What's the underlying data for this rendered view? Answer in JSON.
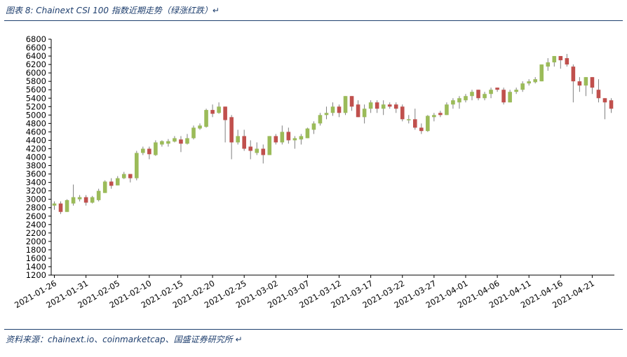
{
  "figure": {
    "title": "图表 8:  Chainext CSI 100 指数近期走势（绿涨红跌）↵",
    "source": "资料来源：chainext.io、coinmarketcap、国盛证券研究所 ↵"
  },
  "colors": {
    "up": "#9bbb59",
    "down": "#c0504d",
    "wick": "#7f7f7f",
    "rule": "#1f3f6e",
    "axis": "#000000"
  },
  "chart_data": {
    "type": "candlestick",
    "title": "",
    "xlabel": "",
    "ylabel": "",
    "ylim": [
      1200,
      6800
    ],
    "ytick_step": 200,
    "grid": false,
    "legend": "none",
    "xtick_labels": [
      "2021-01-26",
      "2021-01-31",
      "2021-02-05",
      "2021-02-10",
      "2021-02-15",
      "2021-02-20",
      "2021-02-25",
      "2021-03-02",
      "2021-03-07",
      "2021-03-12",
      "2021-03-17",
      "2021-03-22",
      "2021-03-27",
      "2021-04-01",
      "2021-04-06",
      "2021-04-11",
      "2021-04-16",
      "2021-04-21"
    ],
    "ohlc": [
      {
        "date": "2021-01-26",
        "o": 2850,
        "h": 2950,
        "l": 2750,
        "c": 2900
      },
      {
        "date": "2021-01-27",
        "o": 2900,
        "h": 2950,
        "l": 2650,
        "c": 2700
      },
      {
        "date": "2021-01-28",
        "o": 2700,
        "h": 3000,
        "l": 2700,
        "c": 2980
      },
      {
        "date": "2021-01-29",
        "o": 2900,
        "h": 3350,
        "l": 2850,
        "c": 3050
      },
      {
        "date": "2021-01-30",
        "o": 3000,
        "h": 3100,
        "l": 2950,
        "c": 3050
      },
      {
        "date": "2021-01-31",
        "o": 3050,
        "h": 3100,
        "l": 2850,
        "c": 2920
      },
      {
        "date": "2021-02-01",
        "o": 2920,
        "h": 3080,
        "l": 2900,
        "c": 3050
      },
      {
        "date": "2021-02-02",
        "o": 2980,
        "h": 3250,
        "l": 2950,
        "c": 3200
      },
      {
        "date": "2021-02-03",
        "o": 3150,
        "h": 3450,
        "l": 3150,
        "c": 3420
      },
      {
        "date": "2021-02-04",
        "o": 3420,
        "h": 3500,
        "l": 3250,
        "c": 3320
      },
      {
        "date": "2021-02-05",
        "o": 3330,
        "h": 3550,
        "l": 3330,
        "c": 3500
      },
      {
        "date": "2021-02-06",
        "o": 3500,
        "h": 3650,
        "l": 3480,
        "c": 3600
      },
      {
        "date": "2021-02-07",
        "o": 3600,
        "h": 3600,
        "l": 3400,
        "c": 3500
      },
      {
        "date": "2021-02-08",
        "o": 3500,
        "h": 4150,
        "l": 3450,
        "c": 4100
      },
      {
        "date": "2021-02-09",
        "o": 4100,
        "h": 4250,
        "l": 4050,
        "c": 4200
      },
      {
        "date": "2021-02-10",
        "o": 4200,
        "h": 4250,
        "l": 3950,
        "c": 4070
      },
      {
        "date": "2021-02-11",
        "o": 4050,
        "h": 4400,
        "l": 4030,
        "c": 4350
      },
      {
        "date": "2021-02-12",
        "o": 4300,
        "h": 4400,
        "l": 4250,
        "c": 4380
      },
      {
        "date": "2021-02-13",
        "o": 4320,
        "h": 4430,
        "l": 4250,
        "c": 4380
      },
      {
        "date": "2021-02-14",
        "o": 4370,
        "h": 4500,
        "l": 4350,
        "c": 4450
      },
      {
        "date": "2021-02-15",
        "o": 4420,
        "h": 4500,
        "l": 4120,
        "c": 4320
      },
      {
        "date": "2021-02-16",
        "o": 4320,
        "h": 4550,
        "l": 4300,
        "c": 4450
      },
      {
        "date": "2021-02-17",
        "o": 4450,
        "h": 4750,
        "l": 4420,
        "c": 4700
      },
      {
        "date": "2021-02-18",
        "o": 4680,
        "h": 4800,
        "l": 4650,
        "c": 4750
      },
      {
        "date": "2021-02-19",
        "o": 4720,
        "h": 5150,
        "l": 4700,
        "c": 5120
      },
      {
        "date": "2021-02-20",
        "o": 5120,
        "h": 5250,
        "l": 4950,
        "c": 5030
      },
      {
        "date": "2021-02-21",
        "o": 5050,
        "h": 5300,
        "l": 5030,
        "c": 5200
      },
      {
        "date": "2021-02-22",
        "o": 5200,
        "h": 5200,
        "l": 4350,
        "c": 4880
      },
      {
        "date": "2021-02-23",
        "o": 4950,
        "h": 5000,
        "l": 3950,
        "c": 4350
      },
      {
        "date": "2021-02-24",
        "o": 4350,
        "h": 4650,
        "l": 4300,
        "c": 4500
      },
      {
        "date": "2021-02-25",
        "o": 4500,
        "h": 4650,
        "l": 4150,
        "c": 4200
      },
      {
        "date": "2021-02-26",
        "o": 4250,
        "h": 4400,
        "l": 3950,
        "c": 4150
      },
      {
        "date": "2021-02-27",
        "o": 4100,
        "h": 4350,
        "l": 4050,
        "c": 4200
      },
      {
        "date": "2021-02-28",
        "o": 4200,
        "h": 4300,
        "l": 3850,
        "c": 4050
      },
      {
        "date": "2021-03-01",
        "o": 4050,
        "h": 4500,
        "l": 4050,
        "c": 4500
      },
      {
        "date": "2021-03-02",
        "o": 4500,
        "h": 4550,
        "l": 4300,
        "c": 4350
      },
      {
        "date": "2021-03-03",
        "o": 4350,
        "h": 4750,
        "l": 4300,
        "c": 4600
      },
      {
        "date": "2021-03-04",
        "o": 4600,
        "h": 4700,
        "l": 4320,
        "c": 4400
      },
      {
        "date": "2021-03-05",
        "o": 4400,
        "h": 4500,
        "l": 4200,
        "c": 4450
      },
      {
        "date": "2021-03-06",
        "o": 4420,
        "h": 4550,
        "l": 4300,
        "c": 4500
      },
      {
        "date": "2021-03-07",
        "o": 4450,
        "h": 4700,
        "l": 4450,
        "c": 4680
      },
      {
        "date": "2021-03-08",
        "o": 4650,
        "h": 4850,
        "l": 4550,
        "c": 4800
      },
      {
        "date": "2021-03-09",
        "o": 4800,
        "h": 5050,
        "l": 4750,
        "c": 5000
      },
      {
        "date": "2021-03-10",
        "o": 5000,
        "h": 5200,
        "l": 4900,
        "c": 5050
      },
      {
        "date": "2021-03-11",
        "o": 5050,
        "h": 5300,
        "l": 4980,
        "c": 5200
      },
      {
        "date": "2021-03-12",
        "o": 5200,
        "h": 5250,
        "l": 4950,
        "c": 5050
      },
      {
        "date": "2021-03-13",
        "o": 5050,
        "h": 5450,
        "l": 5000,
        "c": 5450
      },
      {
        "date": "2021-03-14",
        "o": 5450,
        "h": 5450,
        "l": 5100,
        "c": 5200
      },
      {
        "date": "2021-03-15",
        "o": 5250,
        "h": 5350,
        "l": 4950,
        "c": 4950
      },
      {
        "date": "2021-03-16",
        "o": 4950,
        "h": 5250,
        "l": 4800,
        "c": 5150
      },
      {
        "date": "2021-03-17",
        "o": 5150,
        "h": 5350,
        "l": 5050,
        "c": 5300
      },
      {
        "date": "2021-03-18",
        "o": 5300,
        "h": 5350,
        "l": 5050,
        "c": 5150
      },
      {
        "date": "2021-03-19",
        "o": 5150,
        "h": 5350,
        "l": 5000,
        "c": 5250
      },
      {
        "date": "2021-03-20",
        "o": 5250,
        "h": 5300,
        "l": 5150,
        "c": 5200
      },
      {
        "date": "2021-03-21",
        "o": 5250,
        "h": 5300,
        "l": 5050,
        "c": 5150
      },
      {
        "date": "2021-03-22",
        "o": 5200,
        "h": 5250,
        "l": 4850,
        "c": 4900
      },
      {
        "date": "2021-03-23",
        "o": 4900,
        "h": 5000,
        "l": 4800,
        "c": 4900
      },
      {
        "date": "2021-03-24",
        "o": 4900,
        "h": 5150,
        "l": 4650,
        "c": 4700
      },
      {
        "date": "2021-03-25",
        "o": 4700,
        "h": 4800,
        "l": 4550,
        "c": 4620
      },
      {
        "date": "2021-03-26",
        "o": 4620,
        "h": 5000,
        "l": 4600,
        "c": 4980
      },
      {
        "date": "2021-03-27",
        "o": 4950,
        "h": 5050,
        "l": 4850,
        "c": 5000
      },
      {
        "date": "2021-03-28",
        "o": 5050,
        "h": 5100,
        "l": 4950,
        "c": 5000
      },
      {
        "date": "2021-03-29",
        "o": 5000,
        "h": 5300,
        "l": 5000,
        "c": 5250
      },
      {
        "date": "2021-03-30",
        "o": 5250,
        "h": 5400,
        "l": 5150,
        "c": 5350
      },
      {
        "date": "2021-03-31",
        "o": 5300,
        "h": 5450,
        "l": 5150,
        "c": 5400
      },
      {
        "date": "2021-04-01",
        "o": 5350,
        "h": 5500,
        "l": 5300,
        "c": 5450
      },
      {
        "date": "2021-04-02",
        "o": 5450,
        "h": 5600,
        "l": 5350,
        "c": 5550
      },
      {
        "date": "2021-04-03",
        "o": 5600,
        "h": 5600,
        "l": 5350,
        "c": 5400
      },
      {
        "date": "2021-04-04",
        "o": 5400,
        "h": 5550,
        "l": 5350,
        "c": 5500
      },
      {
        "date": "2021-04-05",
        "o": 5500,
        "h": 5650,
        "l": 5400,
        "c": 5600
      },
      {
        "date": "2021-04-06",
        "o": 5650,
        "h": 5650,
        "l": 5550,
        "c": 5600
      },
      {
        "date": "2021-04-07",
        "o": 5600,
        "h": 5650,
        "l": 5250,
        "c": 5300
      },
      {
        "date": "2021-04-08",
        "o": 5300,
        "h": 5600,
        "l": 5300,
        "c": 5550
      },
      {
        "date": "2021-04-09",
        "o": 5550,
        "h": 5650,
        "l": 5500,
        "c": 5600
      },
      {
        "date": "2021-04-10",
        "o": 5600,
        "h": 5800,
        "l": 5550,
        "c": 5750
      },
      {
        "date": "2021-04-11",
        "o": 5750,
        "h": 5850,
        "l": 5700,
        "c": 5800
      },
      {
        "date": "2021-04-12",
        "o": 5780,
        "h": 5900,
        "l": 5750,
        "c": 5850
      },
      {
        "date": "2021-04-13",
        "o": 5800,
        "h": 6200,
        "l": 5800,
        "c": 6200
      },
      {
        "date": "2021-04-14",
        "o": 6150,
        "h": 6350,
        "l": 6050,
        "c": 6250
      },
      {
        "date": "2021-04-15",
        "o": 6250,
        "h": 6400,
        "l": 6150,
        "c": 6400
      },
      {
        "date": "2021-04-16",
        "o": 6400,
        "h": 6400,
        "l": 6100,
        "c": 6300
      },
      {
        "date": "2021-04-17",
        "o": 6350,
        "h": 6450,
        "l": 6150,
        "c": 6200
      },
      {
        "date": "2021-04-18",
        "o": 6150,
        "h": 6200,
        "l": 5300,
        "c": 5800
      },
      {
        "date": "2021-04-19",
        "o": 5800,
        "h": 5900,
        "l": 5550,
        "c": 5700
      },
      {
        "date": "2021-04-20",
        "o": 5700,
        "h": 5900,
        "l": 5450,
        "c": 5900
      },
      {
        "date": "2021-04-21",
        "o": 5900,
        "h": 5900,
        "l": 5500,
        "c": 5650
      },
      {
        "date": "2021-04-22",
        "o": 5600,
        "h": 5850,
        "l": 5300,
        "c": 5400
      },
      {
        "date": "2021-04-23",
        "o": 5400,
        "h": 5400,
        "l": 4900,
        "c": 5300
      },
      {
        "date": "2021-04-24",
        "o": 5350,
        "h": 5400,
        "l": 5050,
        "c": 5150
      }
    ]
  }
}
